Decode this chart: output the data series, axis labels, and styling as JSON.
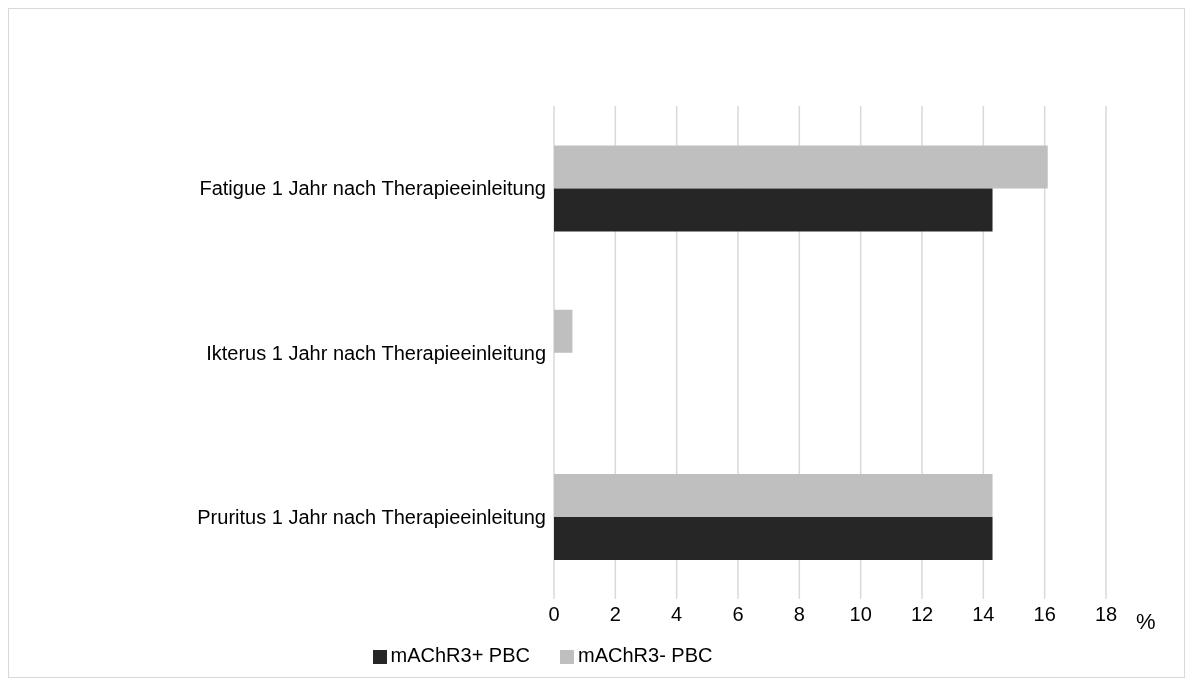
{
  "chart_data": {
    "type": "bar",
    "orientation": "horizontal",
    "categories": [
      "Fatigue 1 Jahr nach Therapieeinleitung",
      "Ikterus 1 Jahr nach Therapieeinleitung",
      "Pruritus 1 Jahr nach Therapieeinleitung"
    ],
    "series": [
      {
        "name": "mAChR3- PBC",
        "color": "#bfbfbf",
        "values": [
          16.1,
          0.6,
          14.3
        ]
      },
      {
        "name": "mAChR3+ PBC",
        "color": "#262626",
        "values": [
          14.3,
          0,
          14.3
        ]
      }
    ],
    "xlabel": "%",
    "xlim": [
      0,
      18
    ],
    "xticks": [
      0,
      2,
      4,
      6,
      8,
      10,
      12,
      14,
      16,
      18
    ],
    "grid": "x",
    "legend": "bottom"
  }
}
